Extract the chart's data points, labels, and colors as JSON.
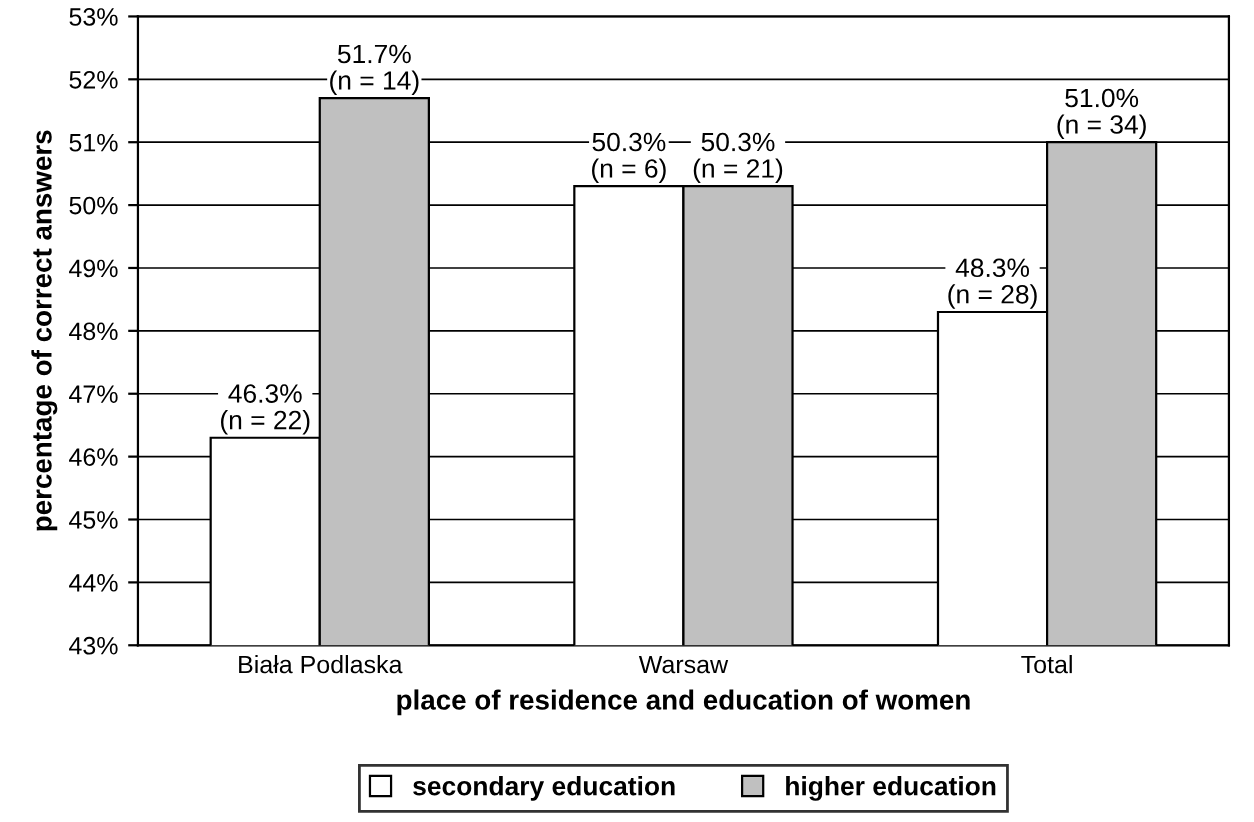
{
  "chart_data": {
    "type": "bar",
    "xlabel": "place of residence and education of women",
    "ylabel": "percentage of correct answers",
    "categories": [
      "Biała Podlaska",
      "Warsaw",
      "Total"
    ],
    "series": [
      {
        "name": "secondary education",
        "color": "#ffffff",
        "values": [
          46.3,
          50.3,
          48.3
        ],
        "value_labels": [
          "46.3%\n(n = 22)",
          "50.3%\n(n = 6)",
          "48.3%\n(n = 28)"
        ]
      },
      {
        "name": "higher education",
        "color": "#c0c0c0",
        "values": [
          51.7,
          50.3,
          51.0
        ],
        "value_labels": [
          "51.7%\n(n = 14)",
          "50.3%\n(n = 21)",
          "51.0%\n(n = 34)"
        ]
      }
    ],
    "ylim": [
      43,
      53
    ],
    "yticks": [
      {
        "value": 43,
        "label": "43%"
      },
      {
        "value": 44,
        "label": "44%"
      },
      {
        "value": 45,
        "label": "45%"
      },
      {
        "value": 46,
        "label": "46%"
      },
      {
        "value": 47,
        "label": "47%"
      },
      {
        "value": 48,
        "label": "48%"
      },
      {
        "value": 49,
        "label": "49%"
      },
      {
        "value": 50,
        "label": "50%"
      },
      {
        "value": 51,
        "label": "51%"
      },
      {
        "value": 52,
        "label": "52%"
      },
      {
        "value": 53,
        "label": "53%"
      }
    ],
    "grid": "y",
    "legend": "bottom"
  }
}
